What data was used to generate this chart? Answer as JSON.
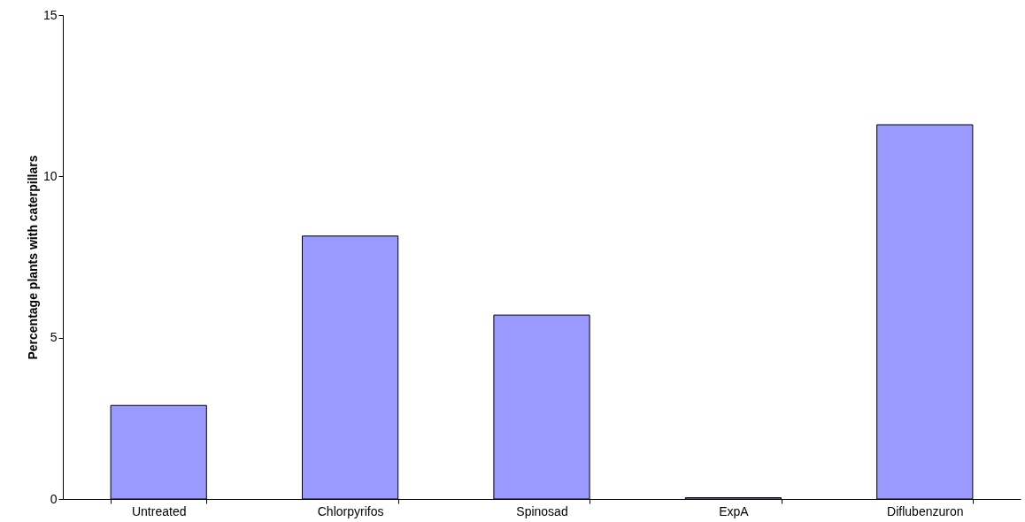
{
  "chart_data": {
    "type": "bar",
    "ylabel": "Percentage plants with caterpillars",
    "categories": [
      "Untreated",
      "Chlorpyrifos",
      "Spinosad",
      "ExpA",
      "Diflubenzuron"
    ],
    "values": [
      2.9,
      8.15,
      5.7,
      0.04,
      11.6
    ],
    "color": "#9999ff",
    "ylim": [
      0,
      15
    ],
    "yticks": [
      0,
      5,
      10,
      15
    ],
    "grid": false
  }
}
